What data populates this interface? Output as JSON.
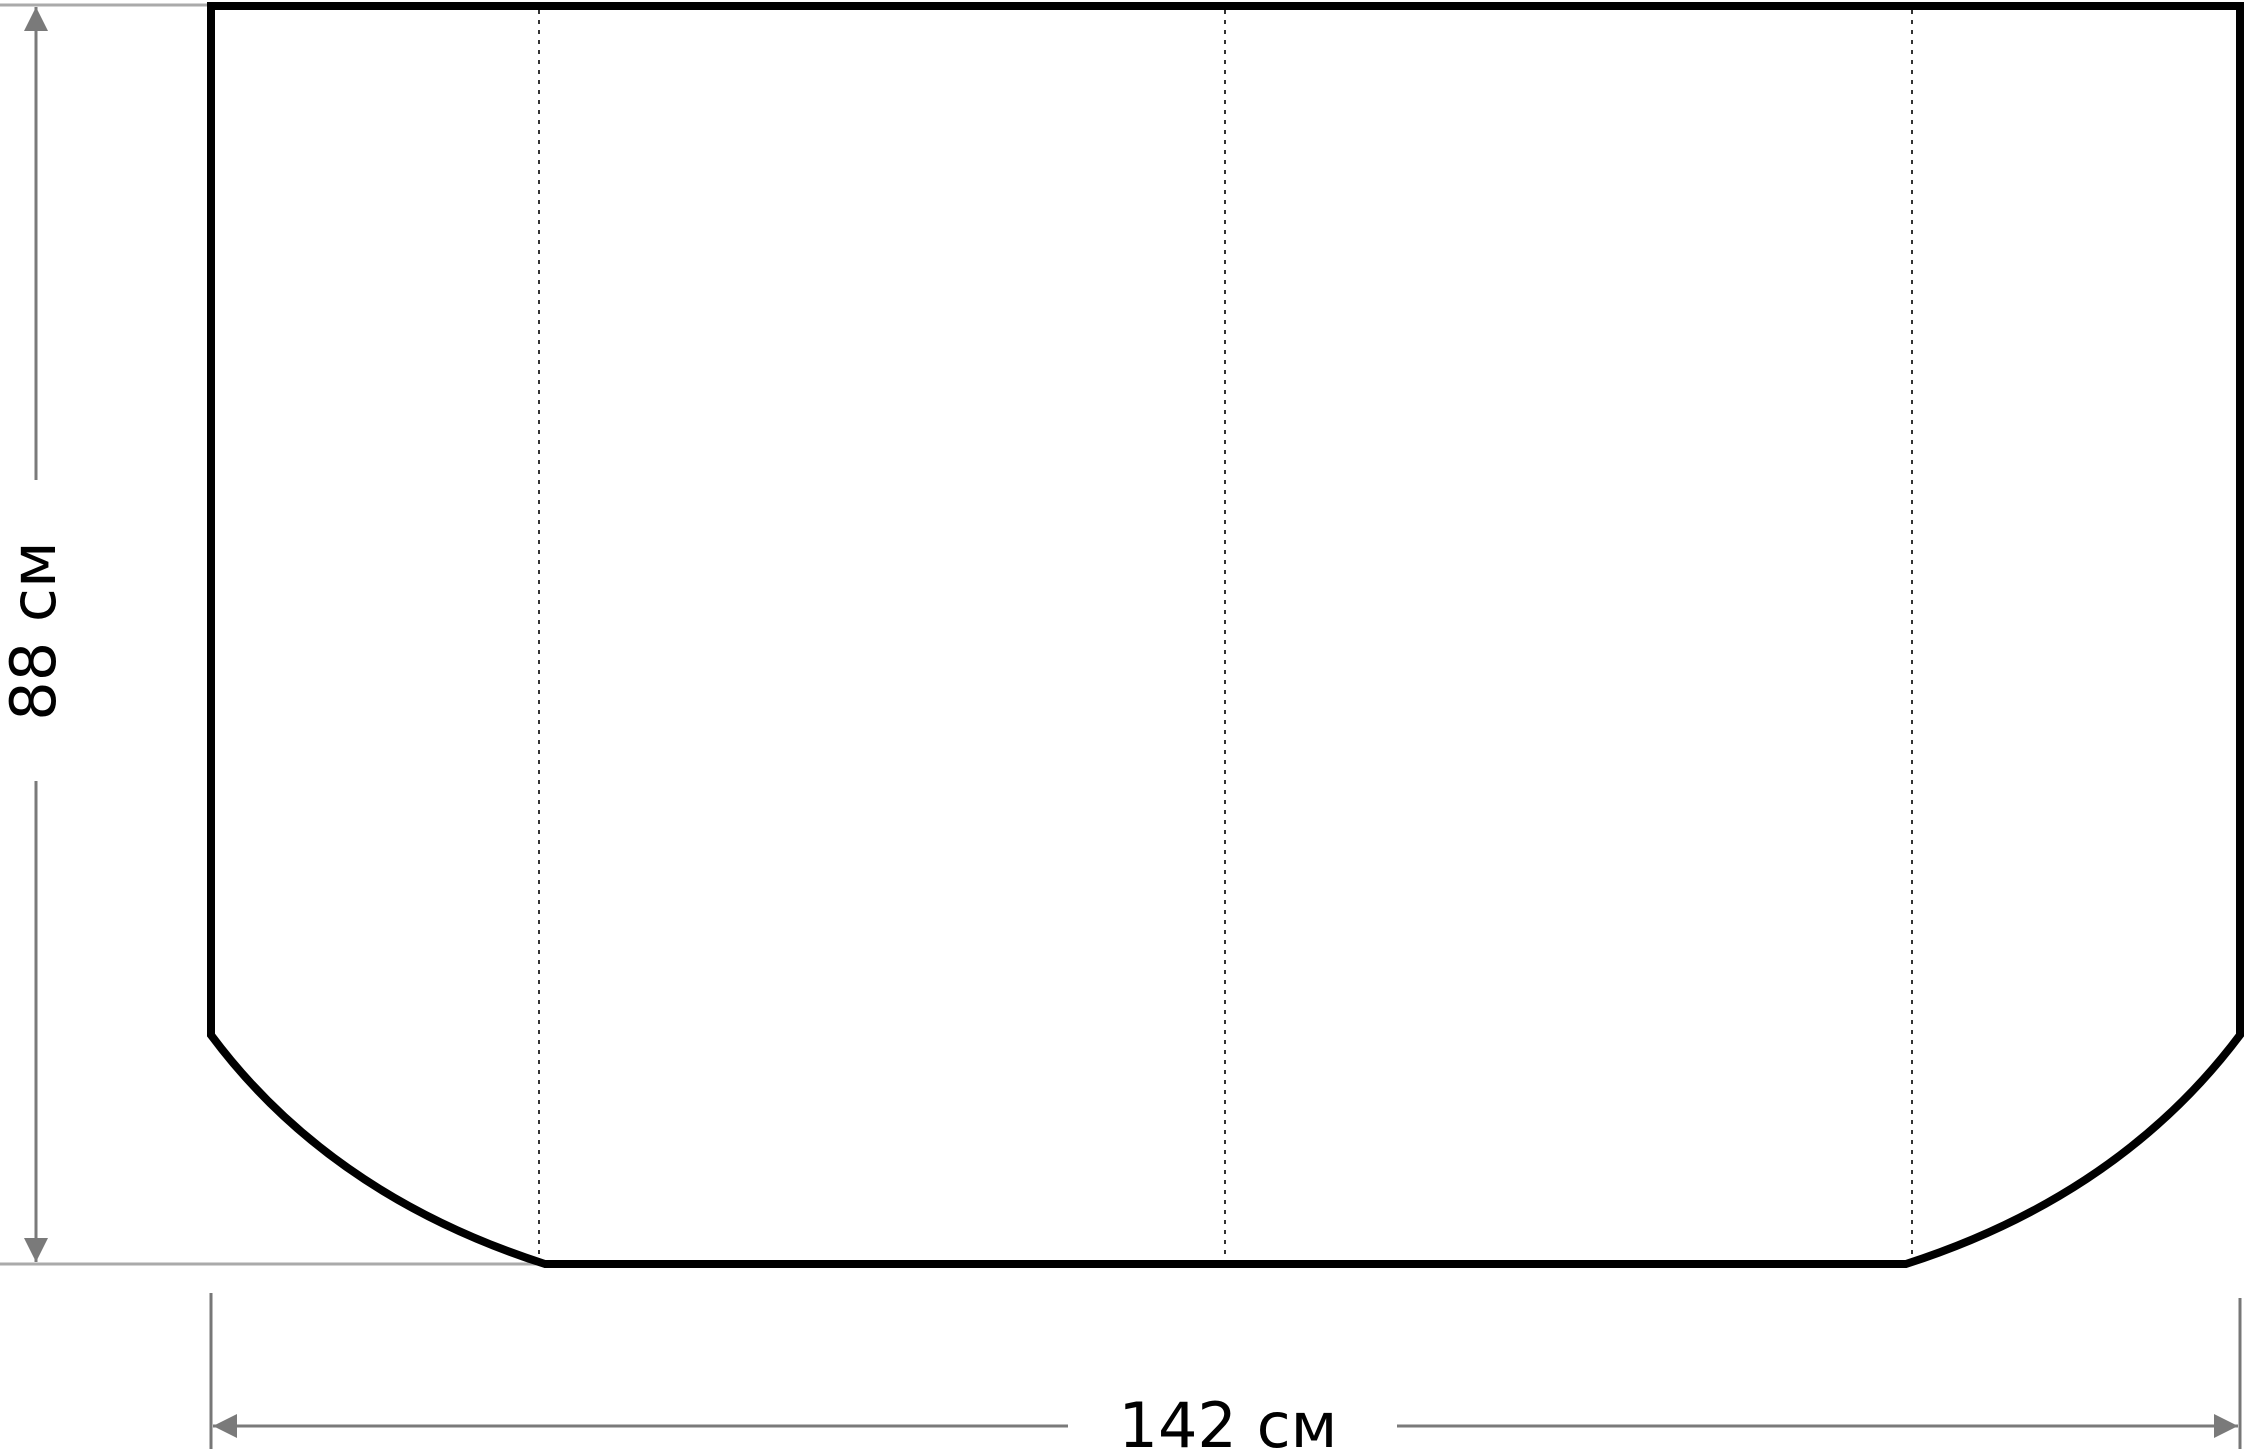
{
  "dimensions": {
    "height_label": "88 см",
    "width_label": "142 см"
  },
  "colors": {
    "outline": "#000000",
    "dimension_lines": "#808080",
    "fold_lines": "#333333"
  }
}
